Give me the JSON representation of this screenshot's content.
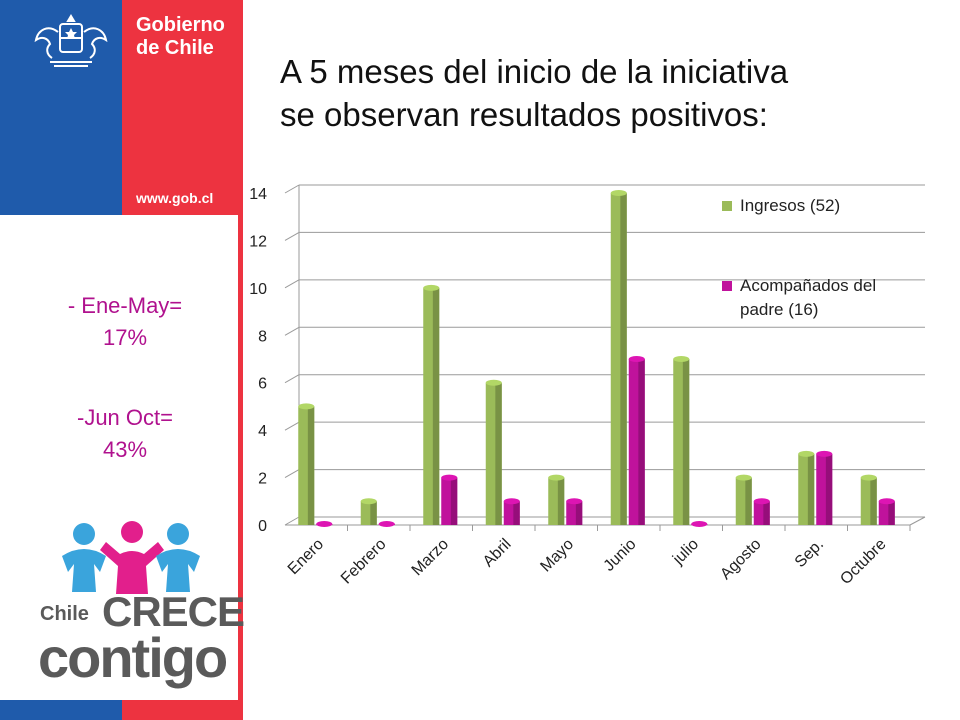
{
  "branding": {
    "gobierno_line1": "Gobierno",
    "gobierno_line2": "de Chile",
    "url": "www.gob.cl",
    "logo_word1": "Chile",
    "logo_word2": "CRECE",
    "logo_word3": "contigo",
    "colors": {
      "blue": "#1f5bab",
      "red": "#ed3340",
      "logo_blue": "#3aa4dc",
      "logo_pink": "#e21f8c",
      "logo_grey": "#5a5a5a"
    }
  },
  "title_line1": "A 5 meses del inicio de la iniciativa",
  "title_line2": "se observan resultados positivos:",
  "notes": [
    {
      "line1": "- Ene-May=",
      "line2": "17%"
    },
    {
      "line1": "-Jun Oct=",
      "line2": "43%"
    }
  ],
  "chart_data": {
    "type": "bar",
    "categories": [
      "Enero",
      "Febrero",
      "Marzo",
      "Abril",
      "Mayo",
      "Junio",
      "julio",
      "Agosto",
      "Sep.",
      "Octubre"
    ],
    "series": [
      {
        "name": "Ingresos (52)",
        "color": "#9bbb59",
        "values": [
          5,
          1,
          10,
          6,
          2,
          14,
          7,
          2,
          3,
          2
        ]
      },
      {
        "name": "Acompañados del padre (16)",
        "color": "#c0129c",
        "values": [
          0,
          0,
          2,
          1,
          1,
          7,
          0,
          1,
          3,
          1
        ]
      }
    ],
    "ylim": [
      0,
      14
    ],
    "yticks": [
      "0",
      "2",
      "4",
      "6",
      "8",
      "10",
      "12",
      "14"
    ],
    "grid": true,
    "legend_position": "top-right",
    "legend_lines": [
      [
        "Ingresos (52)"
      ],
      [
        "Acompañados del",
        "padre (16)"
      ]
    ]
  }
}
